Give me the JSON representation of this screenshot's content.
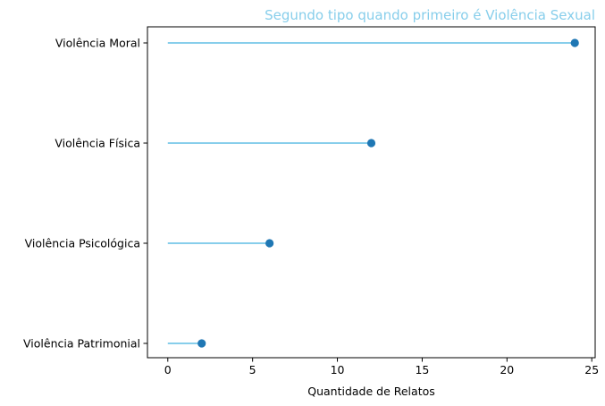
{
  "chart_data": {
    "type": "lollipop",
    "orientation": "horizontal",
    "title": "Segundo tipo quando primeiro é Violência Sexual",
    "title_align": "right",
    "xlabel": "Quantidade de Relatos",
    "ylabel": "",
    "xlim": [
      -1.2,
      25.2
    ],
    "xticks": [
      0,
      5,
      10,
      15,
      20,
      25
    ],
    "categories": [
      "Violência Moral",
      "Violência Física",
      "Violência Psicológica",
      "Violência Patrimonial"
    ],
    "values": [
      24,
      12,
      6,
      2
    ],
    "grid": false,
    "colors": {
      "title": "#87ceeb",
      "stem": "#87ceeb",
      "marker": "#1f77b4",
      "axes": "#000000"
    }
  }
}
